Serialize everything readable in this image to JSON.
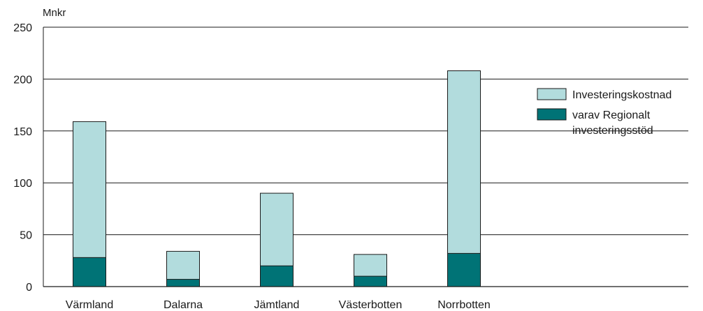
{
  "chart_data": {
    "type": "bar",
    "stacked": true,
    "ylabel": "Mnkr",
    "ylim": [
      0,
      250
    ],
    "yticks": [
      0,
      50,
      100,
      150,
      200,
      250
    ],
    "grid": true,
    "categories": [
      "Värmland",
      "Dalarna",
      "Jämtland",
      "Västerbotten",
      "Norrbotten"
    ],
    "series": [
      {
        "name": "Investeringskostnad",
        "values": [
          159,
          34,
          90,
          31,
          208
        ],
        "color": "#b2dcdd"
      },
      {
        "name": "varav Regionalt investeringsstöd",
        "name_lines": [
          "varav Regionalt",
          "investeringsstöd"
        ],
        "values": [
          28,
          7,
          20,
          10,
          32
        ],
        "color": "#007376"
      }
    ],
    "legend_position": "right"
  }
}
